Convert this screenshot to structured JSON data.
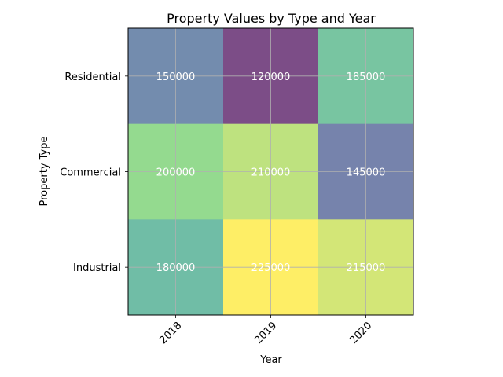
{
  "chart_data": {
    "type": "heatmap",
    "title": "Property Values by Type and Year",
    "xlabel": "Year",
    "ylabel": "Property Type",
    "x_categories": [
      "2018",
      "2019",
      "2020"
    ],
    "y_categories": [
      "Residential",
      "Commercial",
      "Industrial"
    ],
    "values": [
      [
        150000,
        120000,
        185000
      ],
      [
        200000,
        210000,
        145000
      ],
      [
        180000,
        225000,
        215000
      ]
    ],
    "colormap": "viridis",
    "cell_alpha": 0.7,
    "vmin": 120000,
    "vmax": 225000,
    "grid": true,
    "x_tick_rotation_deg": 45,
    "annotation_color": "#ffffff"
  }
}
